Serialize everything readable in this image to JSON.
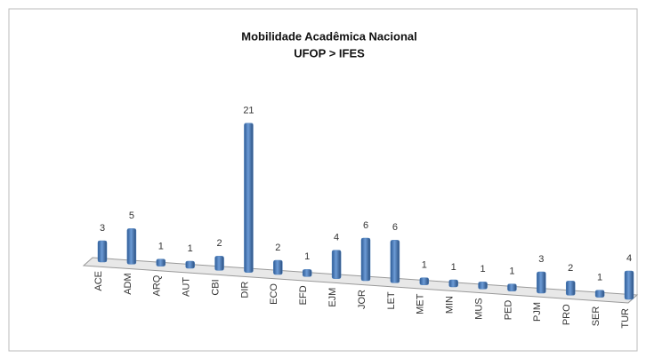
{
  "chart_data": {
    "type": "bar",
    "title": "Mobilidade Acadêmica Nacional",
    "subtitle": "UFOP > IFES",
    "categories": [
      "ACE",
      "ADM",
      "ARQ",
      "AUT",
      "CBI",
      "DIR",
      "ECO",
      "EFD",
      "EJM",
      "JOR",
      "LET",
      "MET",
      "MIN",
      "MUS",
      "PED",
      "PJM",
      "PRO",
      "SER",
      "TUR"
    ],
    "values": [
      3,
      5,
      1,
      1,
      2,
      21,
      2,
      1,
      4,
      6,
      6,
      1,
      1,
      1,
      1,
      3,
      2,
      1,
      4
    ],
    "color": "#4f81bd"
  }
}
